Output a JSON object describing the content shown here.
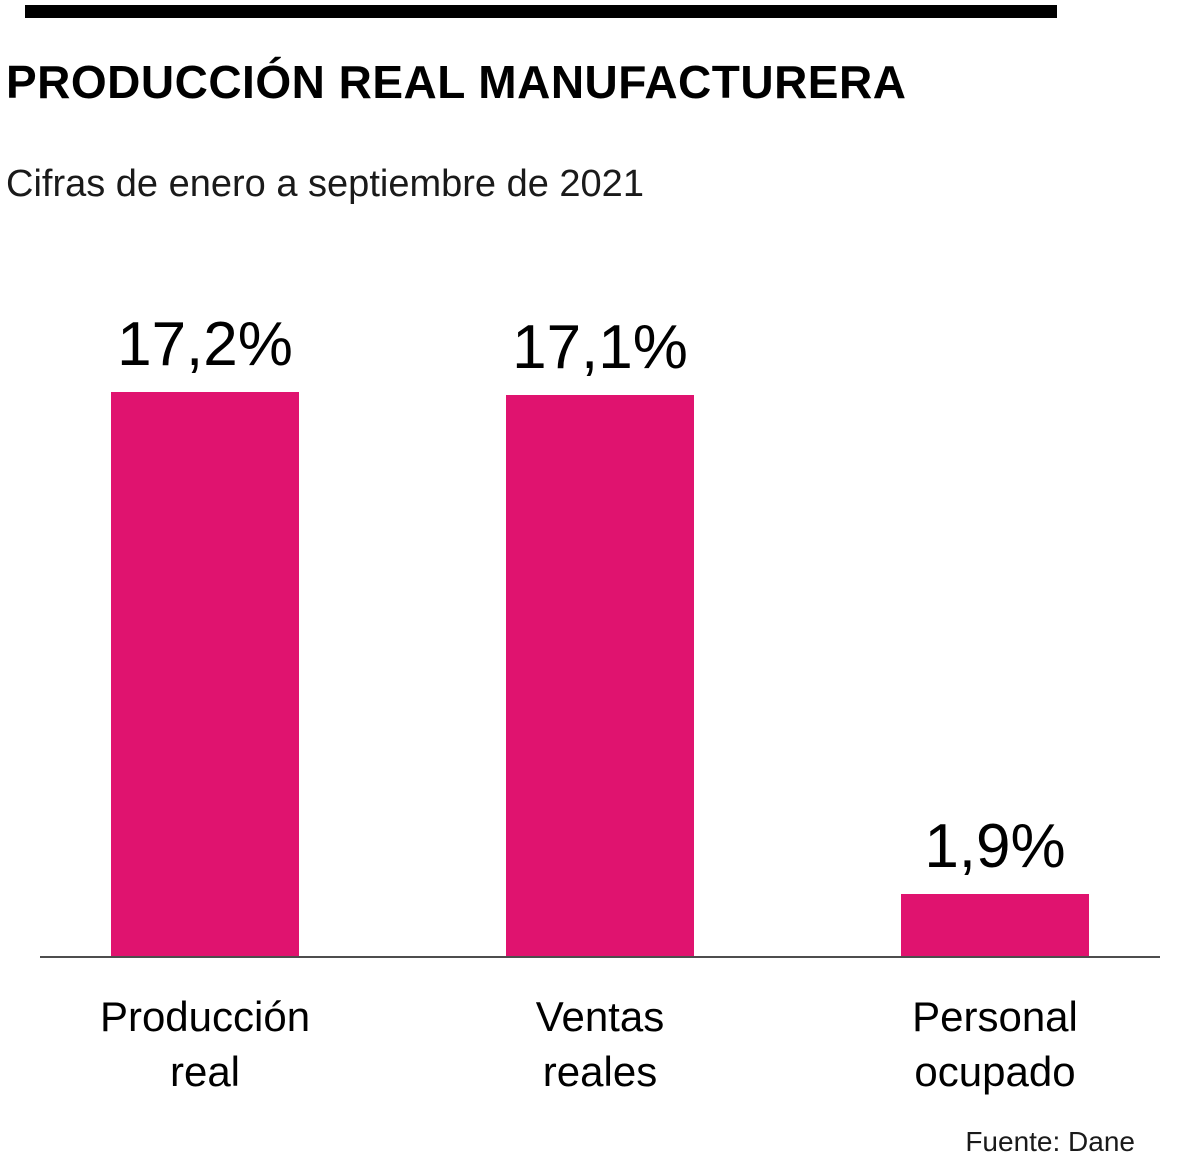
{
  "header": {
    "title": "PRODUCCIÓN REAL MANUFACTURERA",
    "subtitle": "Cifras de enero a septiembre de 2021"
  },
  "chart_data": {
    "type": "bar",
    "title": "PRODUCCIÓN REAL MANUFACTURERA",
    "subtitle": "Cifras de enero a septiembre de 2021",
    "categories": [
      "Producción real",
      "Ventas reales",
      "Personal ocupado"
    ],
    "category_lines": [
      [
        "Producción",
        "real"
      ],
      [
        "Ventas",
        "reales"
      ],
      [
        "Personal",
        "ocupado"
      ]
    ],
    "values": [
      17.2,
      17.1,
      1.9
    ],
    "value_labels": [
      "17,2%",
      "17,1%",
      "1,9%"
    ],
    "unit": "%",
    "ylim": [
      0,
      18
    ],
    "grid": false,
    "legend": false,
    "bar_color": "#e0136f",
    "baseline_color": "#4d4d4d"
  },
  "footer": {
    "source": "Fuente: Dane"
  }
}
